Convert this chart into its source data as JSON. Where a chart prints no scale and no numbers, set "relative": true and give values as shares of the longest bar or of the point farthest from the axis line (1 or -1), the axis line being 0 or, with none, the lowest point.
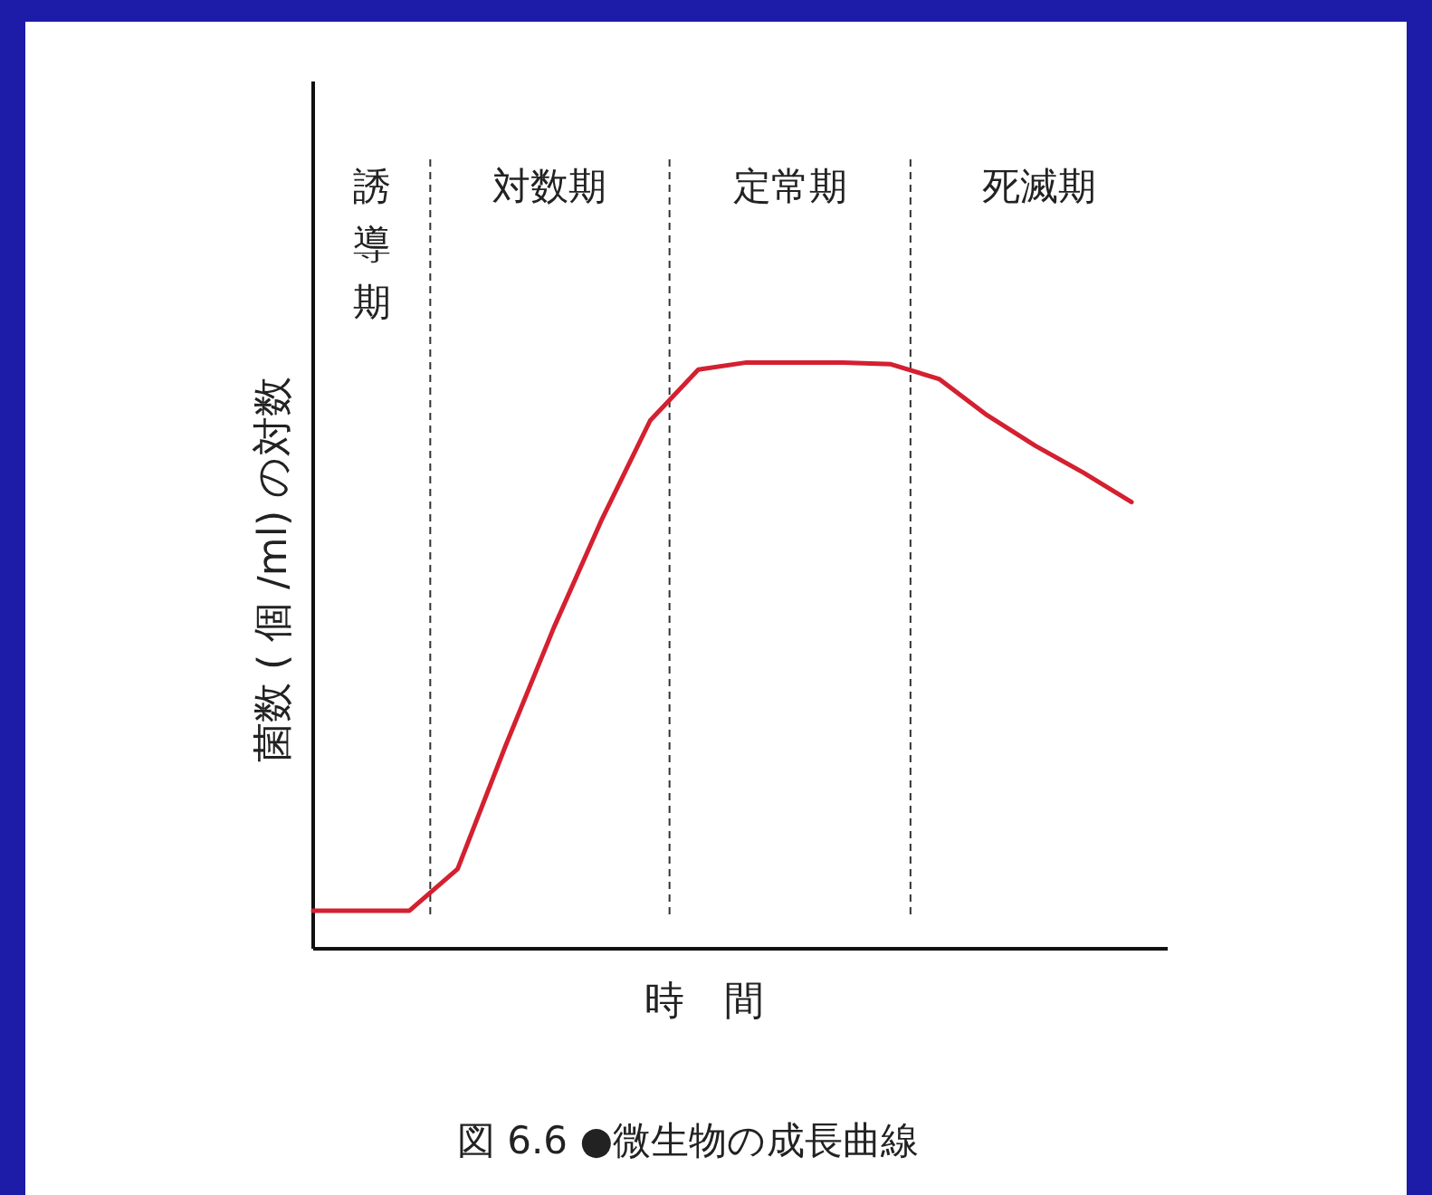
{
  "chart_data": {
    "type": "line",
    "relative": true,
    "xlabel": "時　間",
    "ylabel": "菌数 ( 個 /ml) の対数",
    "annotations": [
      "誘導期",
      "対数期",
      "定常期",
      "死滅期",
      "図 6.6 ●微生物の成長曲線"
    ],
    "marker": "none",
    "line_style": "solid",
    "categories": [
      null,
      null,
      null,
      null,
      null,
      null,
      null,
      null,
      null,
      null,
      null,
      null,
      null,
      null,
      null,
      null,
      null,
      null
    ],
    "series": [
      {
        "color": "#d42030",
        "values": [
          0.065,
          0.065,
          0.065,
          0.136,
          0.347,
          0.548,
          0.733,
          0.901,
          0.988,
          1,
          1,
          1,
          0.997,
          0.972,
          0.91,
          0.858,
          0.812,
          0.762
        ]
      }
    ]
  }
}
